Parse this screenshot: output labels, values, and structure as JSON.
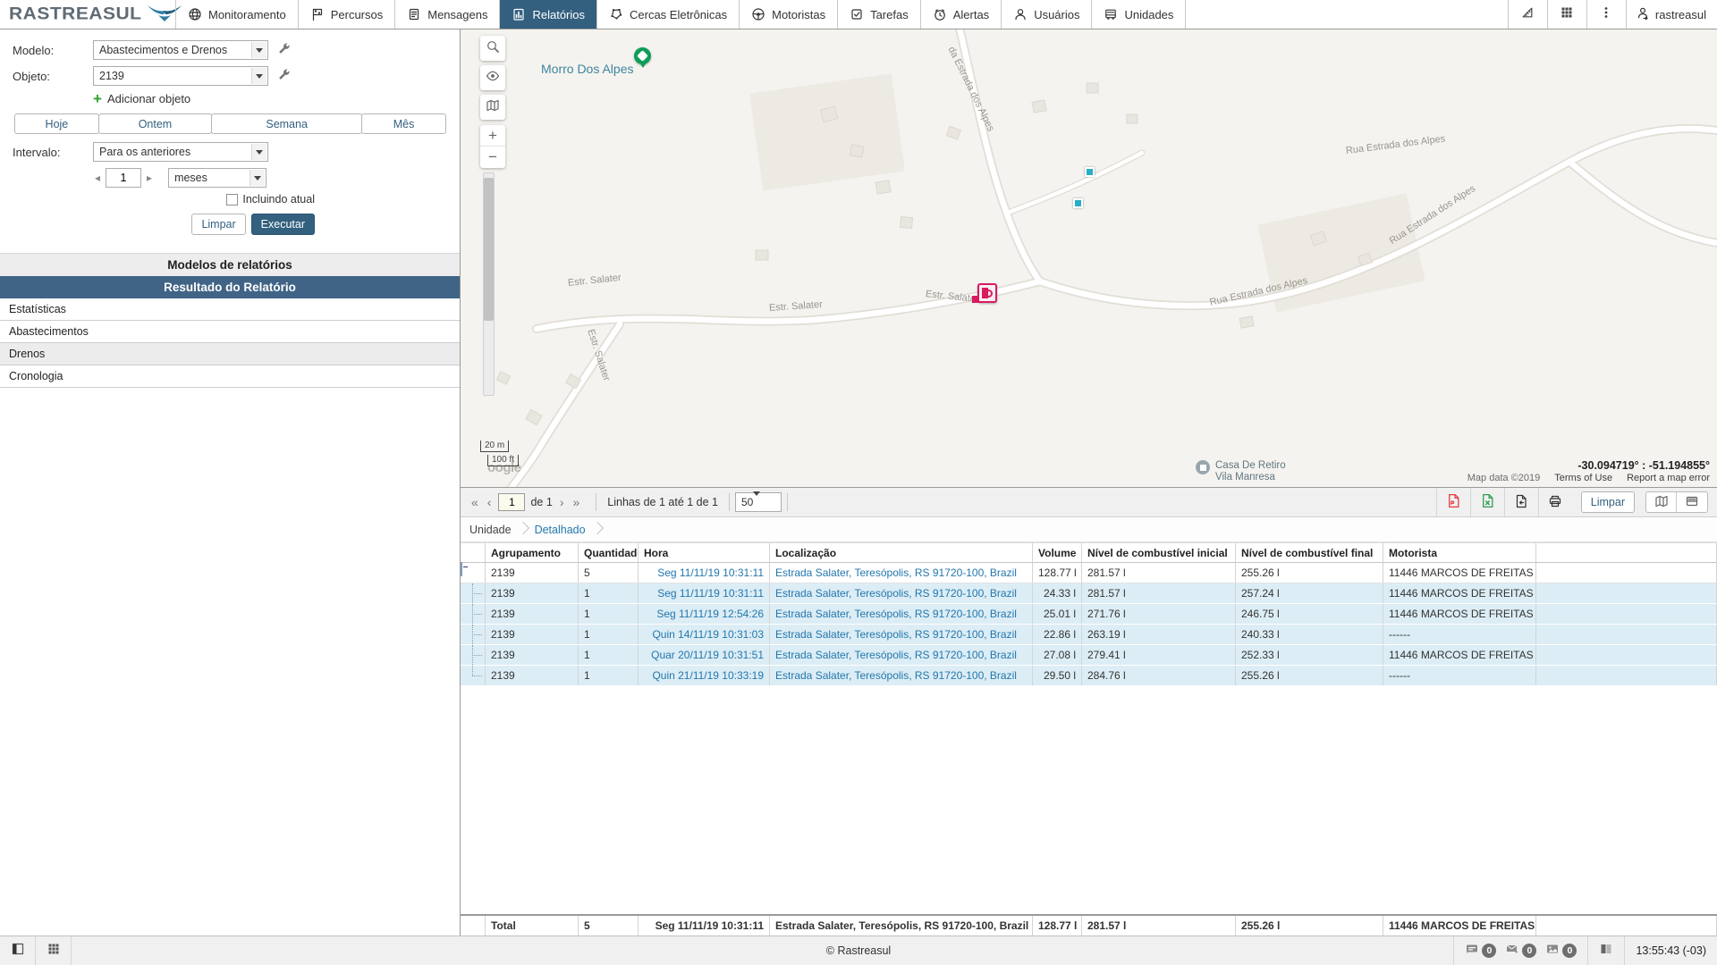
{
  "brand": {
    "name": "RASTREASUL"
  },
  "colors": {
    "accent": "#33607f",
    "link_blue": "#2377ad",
    "result_header_bg": "#406485",
    "pdf_red": "#e5393f",
    "excel_green": "#2e9e4f",
    "marker_pink": "#d81b60",
    "pin_green": "#0f9d58",
    "geofence_teal": "#29aec6",
    "child_row_bg": "#dcedf5"
  },
  "nav": {
    "tabs": [
      {
        "label": "Monitoramento",
        "icon": "globe-icon",
        "active": false
      },
      {
        "label": "Percursos",
        "icon": "flag-icon",
        "active": false
      },
      {
        "label": "Mensagens",
        "icon": "message-icon",
        "active": false
      },
      {
        "label": "Relatórios",
        "icon": "report-icon",
        "active": true
      },
      {
        "label": "Cercas Eletrônicas",
        "icon": "fence-icon",
        "active": false
      },
      {
        "label": "Motoristas",
        "icon": "steering-wheel-icon",
        "active": false
      },
      {
        "label": "Tarefas",
        "icon": "task-icon",
        "active": false
      },
      {
        "label": "Alertas",
        "icon": "alarm-icon",
        "active": false
      },
      {
        "label": "Usuários",
        "icon": "user-icon",
        "active": false
      },
      {
        "label": "Unidades",
        "icon": "truck-icon",
        "active": false
      }
    ],
    "username": "rastreasul"
  },
  "sidebar": {
    "modelo_label": "Modelo:",
    "modelo_value": "Abastecimentos e Drenos",
    "objeto_label": "Objeto:",
    "objeto_value": "2139",
    "add_object_label": "Adicionar objeto",
    "range_buttons": [
      "Hoje",
      "Ontem",
      "Semana",
      "Mês"
    ],
    "intervalo_label": "Intervalo:",
    "intervalo_value": "Para os anteriores",
    "interval_count": "1",
    "interval_unit": "meses",
    "include_current_label": "Incluindo atual",
    "limpar_label": "Limpar",
    "executar_label": "Executar",
    "section_models": "Modelos de relatórios",
    "section_result": "Resultado do Relatório",
    "result_items": [
      {
        "label": "Estatísticas",
        "highlight": false
      },
      {
        "label": "Abastecimentos",
        "highlight": false
      },
      {
        "label": "Drenos",
        "highlight": true
      },
      {
        "label": "Cronologia",
        "highlight": false
      }
    ]
  },
  "map": {
    "place_label": "Morro Dos Alpes",
    "poi_line1": "Casa De Retiro",
    "poi_line2": "Vila Manresa",
    "road_labels": [
      "da Estrada dos Alpes",
      "Rua Estrada dos Alpes",
      "Rua Estrada dos Alpes",
      "Rua Estrada dos Alpes",
      "Estr. Salater",
      "Estr. Salater",
      "Estr. Salater",
      "Estr. Salater"
    ],
    "scale_m": "20 m",
    "scale_ft": "100 ft",
    "google_partial": "oogle",
    "coords": "-30.094719° : -51.194855°",
    "attribution": "Map data ©2019",
    "terms": "Terms of Use",
    "report_error": "Report a map error"
  },
  "toolbar": {
    "page_value": "1",
    "page_of": "de 1",
    "rows_info": "Linhas de 1 até 1 de 1",
    "page_size": "50",
    "limpar_label": "Limpar"
  },
  "breadcrumb": {
    "level1": "Unidade",
    "level2": "Detalhado"
  },
  "table": {
    "headers": [
      "Agrupamento",
      "Quantidade",
      "Hora",
      "Localização",
      "Volume",
      "Nível de combustível inicial",
      "Nível de combustível final",
      "Motorista"
    ],
    "rows": [
      {
        "type": "parent",
        "agrupamento": "2139",
        "quantidade": "5",
        "hora": "Seg 11/11/19 10:31:11",
        "localizacao": "Estrada Salater, Teresópolis, RS 91720-100, Brazil",
        "volume": "128.77 l",
        "nivel_inicial": "281.57 l",
        "nivel_final": "255.26 l",
        "motorista": "11446 MARCOS DE FREITAS"
      },
      {
        "type": "child",
        "agrupamento": "2139",
        "quantidade": "1",
        "hora": "Seg 11/11/19 10:31:11",
        "localizacao": "Estrada Salater, Teresópolis, RS 91720-100, Brazil",
        "volume": "24.33 l",
        "nivel_inicial": "281.57 l",
        "nivel_final": "257.24 l",
        "motorista": "11446 MARCOS DE FREITAS"
      },
      {
        "type": "child",
        "agrupamento": "2139",
        "quantidade": "1",
        "hora": "Seg 11/11/19 12:54:26",
        "localizacao": "Estrada Salater, Teresópolis, RS 91720-100, Brazil",
        "volume": "25.01 l",
        "nivel_inicial": "271.76 l",
        "nivel_final": "246.75 l",
        "motorista": "11446 MARCOS DE FREITAS"
      },
      {
        "type": "child",
        "agrupamento": "2139",
        "quantidade": "1",
        "hora": "Quin 14/11/19 10:31:03",
        "localizacao": "Estrada Salater, Teresópolis, RS 91720-100, Brazil",
        "volume": "22.86 l",
        "nivel_inicial": "263.19 l",
        "nivel_final": "240.33 l",
        "motorista": "------"
      },
      {
        "type": "child",
        "agrupamento": "2139",
        "quantidade": "1",
        "hora": "Quar 20/11/19 10:31:51",
        "localizacao": "Estrada Salater, Teresópolis, RS 91720-100, Brazil",
        "volume": "27.08 l",
        "nivel_inicial": "279.41 l",
        "nivel_final": "252.33 l",
        "motorista": "11446 MARCOS DE FREITAS"
      },
      {
        "type": "child-last",
        "agrupamento": "2139",
        "quantidade": "1",
        "hora": "Quin 21/11/19 10:33:19",
        "localizacao": "Estrada Salater, Teresópolis, RS 91720-100, Brazil",
        "volume": "29.50 l",
        "nivel_inicial": "284.76 l",
        "nivel_final": "255.26 l",
        "motorista": "------"
      }
    ],
    "total_row": {
      "label": "Total",
      "quantidade": "5",
      "hora": "Seg 11/11/19 10:31:11",
      "localizacao": "Estrada Salater, Teresópolis, RS 91720-100, Brazil",
      "volume": "128.77 l",
      "nivel_inicial": "281.57 l",
      "nivel_final": "255.26 l",
      "motorista": "11446 MARCOS DE FREITAS"
    }
  },
  "statusbar": {
    "copyright": "© Rastreasul",
    "messages_badge": "0",
    "mail_badge": "0",
    "images_badge": "0",
    "clock": "13:55:43 (-03)"
  }
}
